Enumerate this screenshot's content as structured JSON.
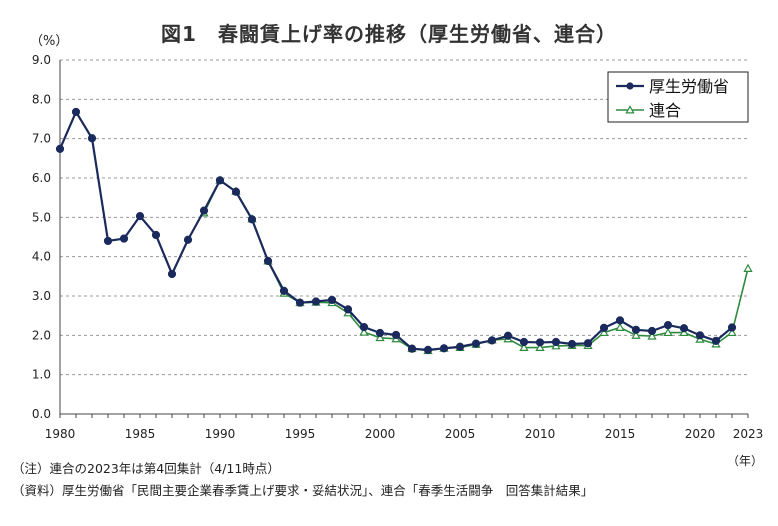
{
  "chart_data": {
    "type": "line",
    "title": "図1　春闘賃上げ率の推移（厚生労働省、連合）",
    "ylabel": "（%）",
    "xlabel": "（年）",
    "ylim": [
      0,
      9
    ],
    "yticks": [
      "0.0",
      "1.0",
      "2.0",
      "3.0",
      "4.0",
      "5.0",
      "6.0",
      "7.0",
      "8.0",
      "9.0"
    ],
    "xticks": [
      "1980",
      "1985",
      "1990",
      "1995",
      "2000",
      "2005",
      "2010",
      "2015",
      "2020",
      "2023"
    ],
    "xlim": [
      1980,
      2023
    ],
    "grid": "horizontal dashed",
    "legend_position": "top-right",
    "series": [
      {
        "name": "厚生労働省",
        "color": "#1b2a5c",
        "marker": "circle",
        "x": [
          1980,
          1981,
          1982,
          1983,
          1984,
          1985,
          1986,
          1987,
          1988,
          1989,
          1990,
          1991,
          1992,
          1993,
          1994,
          1995,
          1996,
          1997,
          1998,
          1999,
          2000,
          2001,
          2002,
          2003,
          2004,
          2005,
          2006,
          2007,
          2008,
          2009,
          2010,
          2011,
          2012,
          2013,
          2014,
          2015,
          2016,
          2017,
          2018,
          2019,
          2020,
          2021,
          2022
        ],
        "values": [
          6.74,
          7.68,
          7.01,
          4.4,
          4.46,
          5.03,
          4.55,
          3.56,
          4.43,
          5.17,
          5.94,
          5.65,
          4.95,
          3.89,
          3.13,
          2.83,
          2.86,
          2.9,
          2.66,
          2.21,
          2.06,
          2.01,
          1.66,
          1.63,
          1.67,
          1.71,
          1.79,
          1.87,
          1.99,
          1.83,
          1.82,
          1.83,
          1.78,
          1.8,
          2.19,
          2.38,
          2.14,
          2.11,
          2.26,
          2.18,
          2.0,
          1.86,
          2.2
        ]
      },
      {
        "name": "連合",
        "color": "#2e8b3e",
        "marker": "triangle",
        "x": [
          1989,
          1990,
          1991,
          1992,
          1993,
          1994,
          1995,
          1996,
          1997,
          1998,
          1999,
          2000,
          2001,
          2002,
          2003,
          2004,
          2005,
          2006,
          2007,
          2008,
          2009,
          2010,
          2011,
          2012,
          2013,
          2014,
          2015,
          2016,
          2017,
          2018,
          2019,
          2020,
          2021,
          2022,
          2023
        ],
        "values": [
          5.11,
          5.94,
          5.66,
          4.96,
          3.89,
          3.07,
          2.83,
          2.84,
          2.83,
          2.57,
          2.08,
          1.94,
          1.91,
          1.66,
          1.61,
          1.67,
          1.69,
          1.77,
          1.88,
          1.91,
          1.69,
          1.69,
          1.73,
          1.74,
          1.74,
          2.07,
          2.2,
          2.0,
          1.98,
          2.07,
          2.07,
          1.9,
          1.78,
          2.07,
          3.7
        ]
      }
    ]
  },
  "notes": {
    "line1": "（注）連合の2023年は第4回集計（4/11時点）",
    "line2": "（資料）厚生労働省「民間主要企業春季賃上げ要求・妥結状況」、連合「春季生活闘争　回答集計結果」"
  }
}
